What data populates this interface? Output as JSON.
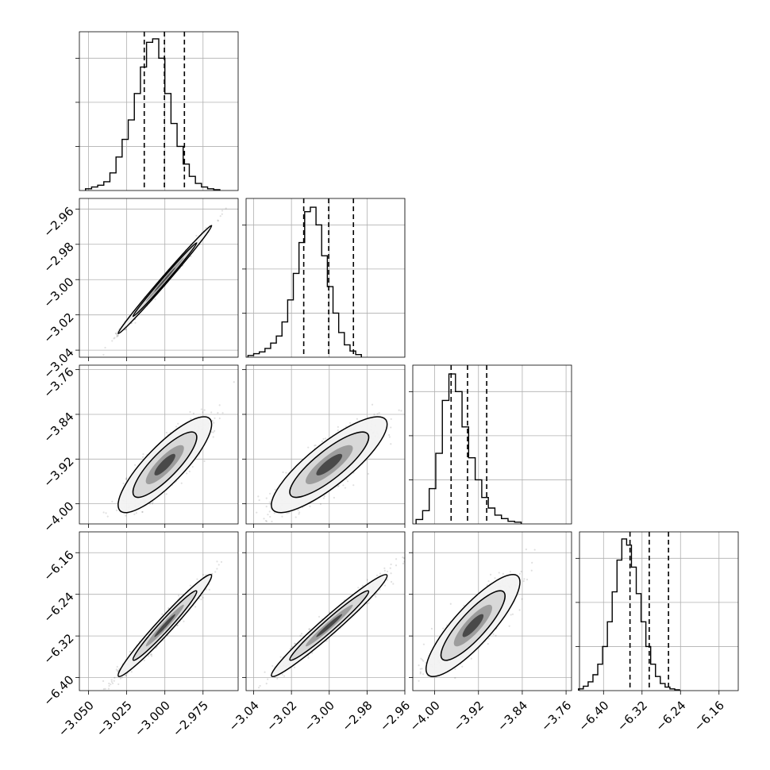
{
  "chart_data": {
    "type": "corner",
    "grid": true,
    "parameters": [
      {
        "range": [
          -3.056,
          -2.952
        ],
        "ticks": [
          -3.05,
          -3.025,
          -3.0,
          -2.975
        ],
        "tick_labels": [
          "−3.050",
          "−3.025",
          "−3.000",
          "−2.975"
        ],
        "row_ticks": [
          -2.96,
          -2.98,
          -3.0,
          -3.02,
          -3.04
        ],
        "row_tick_labels": [
          "−2.96",
          "−2.98",
          "−3.00",
          "−3.02",
          "−3.04"
        ],
        "row_range": [
          -3.044,
          -2.954
        ],
        "quantiles": [
          -3.0135,
          -3.0003,
          -2.9872
        ],
        "hist": {
          "edges_start": -3.052,
          "bin_width": 0.004,
          "counts": [
            2,
            4,
            6,
            10,
            20,
            38,
            58,
            80,
            110,
            140,
            168,
            172,
            150,
            110,
            76,
            50,
            30,
            16,
            8,
            4,
            2,
            1
          ],
          "ylim": [
            0,
            180
          ]
        }
      },
      {
        "range": [
          -3.044,
          -2.96
        ],
        "ticks": [
          -3.04,
          -3.02,
          -3.0,
          -2.98,
          -2.96
        ],
        "tick_labels": [
          "−3.04",
          "−3.02",
          "−3.00",
          "−2.98",
          "−2.96"
        ],
        "row_ticks": [
          -3.76,
          -3.84,
          -3.92,
          -4.0
        ],
        "row_tick_labels": [
          "−3.76",
          "−3.84",
          "−3.92",
          "−4.00"
        ],
        "row_range": [
          -4.036,
          -3.752
        ],
        "quantiles": [
          -3.0135,
          -3.0003,
          -2.9872
        ],
        "hist": {
          "edges_start": -3.043,
          "bin_width": 0.003,
          "counts": [
            2,
            4,
            6,
            10,
            16,
            24,
            40,
            65,
            95,
            130,
            165,
            170,
            150,
            115,
            80,
            50,
            28,
            14,
            7,
            3
          ],
          "ylim": [
            0,
            180
          ]
        }
      },
      {
        "range": [
          -4.04,
          -3.75
        ],
        "ticks": [
          -4.0,
          -3.92,
          -3.84,
          -3.76
        ],
        "tick_labels": [
          "−4.00",
          "−3.92",
          "−3.84",
          "−3.76"
        ],
        "row_ticks": [
          -6.16,
          -6.24,
          -6.32,
          -6.4
        ],
        "row_tick_labels": [
          "−6.16",
          "−6.24",
          "−6.32",
          "−6.40"
        ],
        "row_range": [
          -6.425,
          -6.12
        ],
        "quantiles": [
          -3.97,
          -3.94,
          -3.905
        ],
        "hist": {
          "edges_start": -4.034,
          "bin_width": 0.012,
          "counts": [
            5,
            15,
            40,
            80,
            140,
            170,
            150,
            110,
            75,
            50,
            30,
            18,
            10,
            6,
            3,
            2
          ],
          "ylim": [
            0,
            180
          ]
        }
      },
      {
        "range": [
          -6.45,
          -6.12
        ],
        "ticks": [
          -6.4,
          -6.32,
          -6.24,
          -6.16
        ],
        "tick_labels": [
          "−6.40",
          "−6.32",
          "−6.24",
          "−6.16"
        ],
        "quantiles": [
          -6.345,
          -6.305,
          -6.265
        ],
        "hist": {
          "edges_start": -6.452,
          "bin_width": 0.01,
          "counts": [
            2,
            5,
            10,
            18,
            30,
            50,
            78,
            112,
            148,
            172,
            165,
            140,
            110,
            78,
            50,
            30,
            16,
            8,
            4,
            2,
            1
          ],
          "ylim": [
            0,
            180
          ]
        }
      }
    ],
    "pairs": [
      {
        "row": 1,
        "col": 0,
        "rho": 0.995,
        "center": [
          -3.0,
          -3.0
        ],
        "sd": [
          0.0125,
          0.0125
        ]
      },
      {
        "row": 2,
        "col": 0,
        "rho": 0.84,
        "center": [
          -3.0,
          -3.93
        ],
        "sd": [
          0.0125,
          0.035
        ]
      },
      {
        "row": 2,
        "col": 1,
        "rho": 0.84,
        "center": [
          -3.0,
          -3.93
        ],
        "sd": [
          0.0125,
          0.035
        ]
      },
      {
        "row": 3,
        "col": 0,
        "rho": 0.975,
        "center": [
          -3.0,
          -6.3
        ],
        "sd": [
          0.0125,
          0.04
        ]
      },
      {
        "row": 3,
        "col": 1,
        "rho": 0.975,
        "center": [
          -3.0,
          -6.3
        ],
        "sd": [
          0.0125,
          0.04
        ]
      },
      {
        "row": 3,
        "col": 2,
        "rho": 0.85,
        "center": [
          -3.93,
          -6.3
        ],
        "sd": [
          0.035,
          0.04
        ]
      }
    ]
  }
}
